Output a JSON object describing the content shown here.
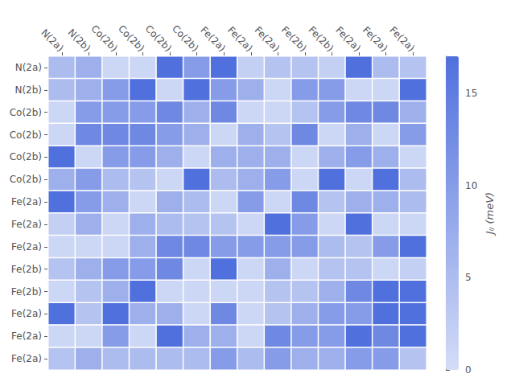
{
  "chart_data": {
    "type": "heatmap",
    "col_labels": [
      "N(2a)",
      "N(2b)",
      "Co(2b)",
      "Co(2b)",
      "Co(2b)",
      "Co(2b)",
      "Fe(2a)",
      "Fe(2a)",
      "Fe(2a)",
      "Fe(2b)",
      "Fe(2b)",
      "Fe(2a)",
      "Fe(2a)",
      "Fe(2a)"
    ],
    "row_labels": [
      "N(2a)",
      "N(2b)",
      "Co(2b)",
      "Co(2b)",
      "Co(2b)",
      "Co(2b)",
      "Fe(2a)",
      "Fe(2a)",
      "Fe(2a)",
      "Fe(2b)",
      "Fe(2b)",
      "Fe(2a)",
      "Fe(2a)",
      "Fe(2a)"
    ],
    "matrix": [
      [
        5,
        7,
        1,
        1,
        17,
        10,
        17,
        2,
        4,
        4,
        2,
        17,
        5,
        4
      ],
      [
        5,
        7,
        10,
        17,
        1,
        17,
        10,
        7,
        1,
        10,
        10,
        1,
        1,
        17
      ],
      [
        1,
        10,
        10,
        10,
        13,
        7,
        13,
        1,
        1,
        4,
        10,
        13,
        13,
        7
      ],
      [
        1,
        13,
        13,
        13,
        10,
        7,
        1,
        7,
        4,
        13,
        1,
        7,
        1,
        10
      ],
      [
        17,
        1,
        10,
        10,
        7,
        1,
        7,
        7,
        7,
        1,
        7,
        10,
        7,
        1
      ],
      [
        7,
        10,
        5,
        4,
        1,
        17,
        5,
        7,
        10,
        1,
        17,
        1,
        17,
        5
      ],
      [
        17,
        10,
        7,
        1,
        7,
        5,
        1,
        10,
        1,
        13,
        4,
        7,
        7,
        5
      ],
      [
        2,
        7,
        1,
        7,
        5,
        4,
        4,
        1,
        17,
        10,
        1,
        17,
        1,
        1
      ],
      [
        1,
        1,
        1,
        7,
        13,
        13,
        10,
        10,
        10,
        10,
        5,
        4,
        10,
        17
      ],
      [
        4,
        7,
        10,
        10,
        13,
        1,
        17,
        1,
        7,
        1,
        4,
        4,
        1,
        2
      ],
      [
        1,
        4,
        7,
        17,
        1,
        1,
        1,
        1,
        4,
        4,
        7,
        13,
        17,
        17
      ],
      [
        17,
        4,
        17,
        7,
        7,
        1,
        13,
        1,
        4,
        7,
        10,
        10,
        17,
        17
      ],
      [
        1,
        1,
        10,
        1,
        17,
        7,
        7,
        1,
        13,
        10,
        10,
        17,
        13,
        17
      ],
      [
        4,
        7,
        5,
        5,
        5,
        5,
        10,
        5,
        10,
        7,
        7,
        10,
        10,
        4
      ]
    ],
    "colorbar_label": "Jᵢⱼ (meV)",
    "colorbar_range": [
      0,
      17
    ],
    "colorbar_ticks": [
      0,
      5,
      10,
      15
    ]
  }
}
